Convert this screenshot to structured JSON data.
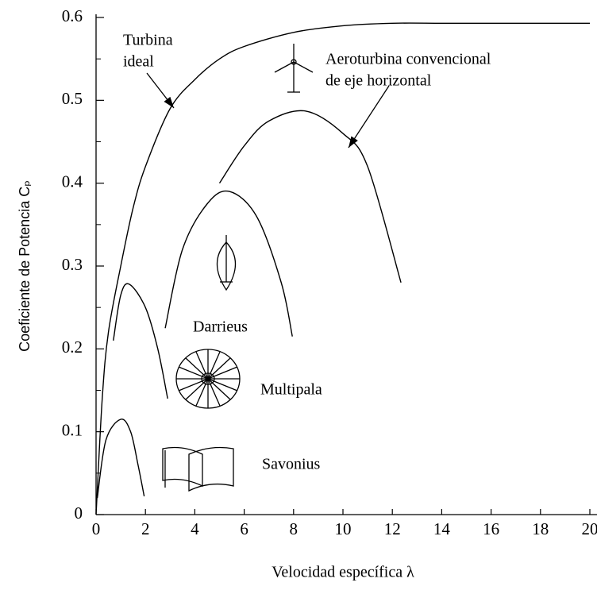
{
  "chart_data": {
    "type": "line",
    "xlabel": "Velocidad específica λ",
    "ylabel": "Coeficiente de Potencia Cₚ",
    "xlim": [
      0,
      20
    ],
    "ylim": [
      0,
      0.6
    ],
    "xticks": [
      0,
      2,
      4,
      6,
      8,
      10,
      12,
      14,
      16,
      18,
      20
    ],
    "yticks": [
      0,
      0.1,
      0.2,
      0.3,
      0.4,
      0.5,
      0.6
    ],
    "series": [
      {
        "label": [
          "Turbina",
          "ideal"
        ],
        "color": "#000000",
        "x": [
          0,
          0.25,
          0.5,
          1,
          1.5,
          2,
          3,
          4,
          5,
          6,
          8,
          10,
          12,
          14,
          16,
          18,
          20
        ],
        "values": [
          0,
          0.14,
          0.22,
          0.3,
          0.37,
          0.42,
          0.49,
          0.525,
          0.55,
          0.565,
          0.582,
          0.59,
          0.593,
          0.593,
          0.593,
          0.593,
          0.593
        ]
      },
      {
        "label": [
          "Aeroturbina convencional",
          "de eje horizontal"
        ],
        "color": "#000000",
        "x": [
          5,
          6,
          7,
          8.5,
          10,
          11,
          12.35
        ],
        "values": [
          0.4,
          0.445,
          0.475,
          0.487,
          0.46,
          0.42,
          0.28
        ]
      },
      {
        "label": [
          "Darrieus"
        ],
        "color": "#000000",
        "x": [
          2.8,
          3.5,
          4.5,
          5.4,
          6.5,
          7.5,
          7.95
        ],
        "values": [
          0.225,
          0.32,
          0.375,
          0.39,
          0.36,
          0.28,
          0.215
        ]
      },
      {
        "label": [
          "Multipala"
        ],
        "color": "#000000",
        "x": [
          0.7,
          1,
          1.35,
          2,
          2.5,
          2.9
        ],
        "values": [
          0.21,
          0.265,
          0.278,
          0.25,
          0.2,
          0.14
        ]
      },
      {
        "label": [
          "Savonius"
        ],
        "color": "#000000",
        "x": [
          0.05,
          0.4,
          1,
          1.4,
          1.7,
          1.95
        ],
        "values": [
          0.02,
          0.09,
          0.115,
          0.1,
          0.06,
          0.022
        ]
      }
    ]
  }
}
